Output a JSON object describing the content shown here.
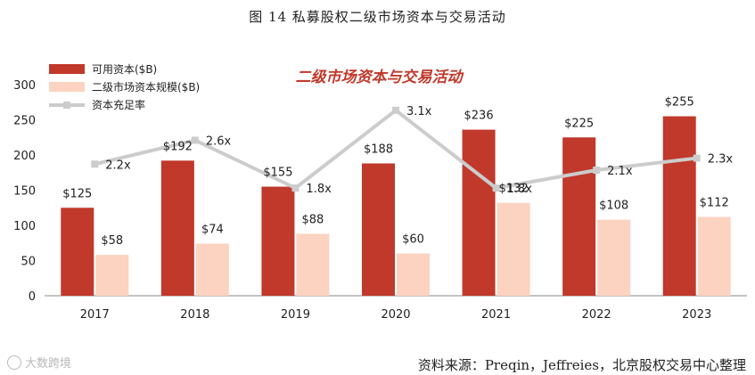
{
  "figure": {
    "title": "图 14  私募股权二级市场资本与交易活动",
    "source": "资料来源：Preqin，Jeffreies，北京股权交易中心整理",
    "watermark": "大数跨境"
  },
  "colors": {
    "series1": "#c0392b",
    "series2": "#fbd3c0",
    "series3": "#cccccc",
    "inner_title": "#c0392b",
    "axis": "#888888",
    "text": "#222222"
  },
  "chart_data": {
    "type": "bar",
    "title": "二级市场资本与交易活动",
    "categories": [
      "2017",
      "2018",
      "2019",
      "2020",
      "2021",
      "2022",
      "2023"
    ],
    "series": [
      {
        "name": "可用资本($B)",
        "kind": "bar",
        "values": [
          125,
          192,
          155,
          188,
          236,
          225,
          255
        ],
        "labels": [
          "$125",
          "$192",
          "$155",
          "$188",
          "$236",
          "$225",
          "$255"
        ]
      },
      {
        "name": "二级市场资本规模($B)",
        "kind": "bar",
        "values": [
          58,
          74,
          88,
          60,
          132,
          108,
          112
        ],
        "labels": [
          "$58",
          "$74",
          "$88",
          "$60",
          "$132",
          "$108",
          "$112"
        ]
      },
      {
        "name": "资本充足率",
        "kind": "line",
        "values": [
          2.2,
          2.6,
          1.8,
          3.1,
          1.8,
          2.1,
          2.3
        ],
        "labels": [
          "2.2x",
          "2.6x",
          "1.8x",
          "3.1x",
          "1.8x",
          "2.1x",
          "2.3x"
        ]
      }
    ],
    "ylim": [
      0,
      300
    ],
    "yticks": [
      "0",
      "50",
      "100",
      "150",
      "200",
      "250",
      "300"
    ],
    "xlabel": "",
    "ylabel": "",
    "grid": false,
    "legend": "top-left"
  }
}
